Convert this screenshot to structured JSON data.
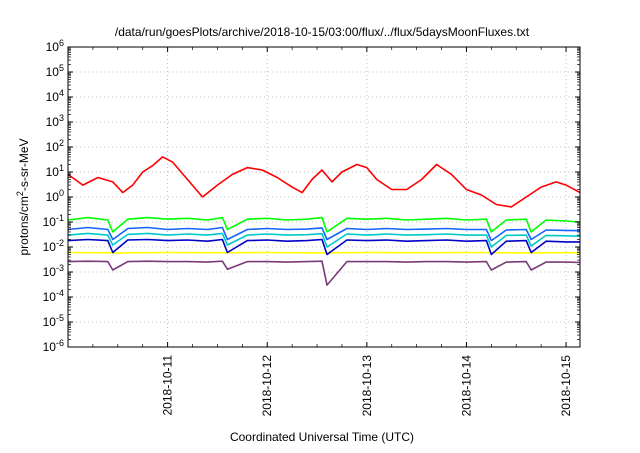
{
  "chart_data": {
    "type": "line",
    "title": "/data/run/goesPlots/archive/2018-10-15/03:00/flux/../flux/5daysMoonFluxes.txt",
    "xlabel": "Coordinated Universal Time (UTC)",
    "ylabel": "protons/cm²-s-sr-MeV",
    "y_scale": "log",
    "ylim": [
      1e-06,
      1000000.0
    ],
    "xlim": [
      0.0,
      5.14
    ],
    "x_unit": "days since 2018-10-10 00:00 UTC",
    "x_ticks": [
      {
        "value": 1,
        "label": "2018-10-11"
      },
      {
        "value": 2,
        "label": "2018-10-12"
      },
      {
        "value": 3,
        "label": "2018-10-13"
      },
      {
        "value": 4,
        "label": "2018-10-14"
      },
      {
        "value": 5,
        "label": "2018-10-15"
      }
    ],
    "y_ticks": [
      {
        "value": 1e-06,
        "base": "10",
        "exp": "-6"
      },
      {
        "value": 1e-05,
        "base": "10",
        "exp": "-5"
      },
      {
        "value": 0.0001,
        "base": "10",
        "exp": "-4"
      },
      {
        "value": 0.001,
        "base": "10",
        "exp": "-3"
      },
      {
        "value": 0.01,
        "base": "10",
        "exp": "-2"
      },
      {
        "value": 0.1,
        "base": "10",
        "exp": "-1"
      },
      {
        "value": 1,
        "base": "10",
        "exp": "0"
      },
      {
        "value": 10,
        "base": "10",
        "exp": "1"
      },
      {
        "value": 100,
        "base": "10",
        "exp": "2"
      },
      {
        "value": 1000,
        "base": "10",
        "exp": "3"
      },
      {
        "value": 10000,
        "base": "10",
        "exp": "4"
      },
      {
        "value": 100000,
        "base": "10",
        "exp": "5"
      },
      {
        "value": 1000000,
        "base": "10",
        "exp": "6"
      }
    ],
    "grid": true,
    "series": [
      {
        "color": "#ff0000",
        "x": [
          0,
          0.15,
          0.3,
          0.45,
          0.55,
          0.65,
          0.75,
          0.85,
          0.95,
          1.05,
          1.2,
          1.35,
          1.5,
          1.65,
          1.8,
          1.95,
          2.1,
          2.25,
          2.35,
          2.45,
          2.55,
          2.65,
          2.75,
          2.9,
          3.0,
          3.1,
          3.25,
          3.4,
          3.55,
          3.7,
          3.85,
          4.0,
          4.15,
          4.3,
          4.45,
          4.6,
          4.75,
          4.9,
          5.0,
          5.14
        ],
        "y": [
          8,
          3,
          6,
          4,
          1.5,
          3,
          10,
          18,
          40,
          25,
          5,
          1,
          3,
          8,
          15,
          12,
          6,
          2.5,
          1.5,
          5,
          12,
          4,
          10,
          20,
          15,
          5,
          2,
          2,
          5,
          20,
          8,
          2,
          1.2,
          0.5,
          0.4,
          1,
          2.5,
          4,
          3,
          1.5
        ]
      },
      {
        "color": "#00ff00",
        "x": [
          0,
          0.2,
          0.4,
          0.45,
          0.6,
          0.8,
          1.0,
          1.2,
          1.4,
          1.55,
          1.6,
          1.8,
          2.0,
          2.2,
          2.4,
          2.55,
          2.6,
          2.8,
          3.0,
          3.2,
          3.4,
          3.6,
          3.8,
          4.0,
          4.2,
          4.25,
          4.4,
          4.6,
          4.65,
          4.8,
          5.0,
          5.14
        ],
        "y": [
          0.12,
          0.15,
          0.12,
          0.04,
          0.13,
          0.15,
          0.13,
          0.14,
          0.12,
          0.15,
          0.05,
          0.13,
          0.14,
          0.12,
          0.13,
          0.15,
          0.04,
          0.14,
          0.13,
          0.14,
          0.12,
          0.13,
          0.14,
          0.12,
          0.13,
          0.04,
          0.12,
          0.13,
          0.04,
          0.12,
          0.11,
          0.1
        ]
      },
      {
        "color": "#00c8c8",
        "x": [
          0,
          0.2,
          0.4,
          0.45,
          0.6,
          0.8,
          1.0,
          1.2,
          1.4,
          1.55,
          1.6,
          1.8,
          2.0,
          2.2,
          2.4,
          2.55,
          2.6,
          2.8,
          3.0,
          3.2,
          3.4,
          3.6,
          3.8,
          4.0,
          4.2,
          4.25,
          4.4,
          4.6,
          4.65,
          4.8,
          5.0,
          5.14
        ],
        "y": [
          0.03,
          0.035,
          0.03,
          0.012,
          0.032,
          0.035,
          0.03,
          0.033,
          0.03,
          0.035,
          0.012,
          0.03,
          0.033,
          0.03,
          0.031,
          0.034,
          0.01,
          0.033,
          0.03,
          0.033,
          0.03,
          0.031,
          0.033,
          0.03,
          0.03,
          0.01,
          0.029,
          0.03,
          0.011,
          0.029,
          0.028,
          0.027
        ]
      },
      {
        "color": "#1464ff",
        "x": [
          0,
          0.2,
          0.4,
          0.45,
          0.6,
          0.8,
          1.0,
          1.2,
          1.4,
          1.55,
          1.6,
          1.8,
          2.0,
          2.2,
          2.4,
          2.55,
          2.6,
          2.8,
          3.0,
          3.2,
          3.4,
          3.6,
          3.8,
          4.0,
          4.2,
          4.25,
          4.4,
          4.6,
          4.65,
          4.8,
          5.0,
          5.14
        ],
        "y": [
          0.05,
          0.06,
          0.05,
          0.02,
          0.055,
          0.06,
          0.05,
          0.055,
          0.05,
          0.06,
          0.02,
          0.05,
          0.055,
          0.05,
          0.052,
          0.058,
          0.02,
          0.055,
          0.05,
          0.055,
          0.05,
          0.052,
          0.055,
          0.05,
          0.05,
          0.018,
          0.048,
          0.05,
          0.02,
          0.048,
          0.046,
          0.045
        ]
      },
      {
        "color": "#0000c8",
        "x": [
          0,
          0.2,
          0.4,
          0.45,
          0.6,
          0.8,
          1.0,
          1.2,
          1.4,
          1.55,
          1.6,
          1.8,
          2.0,
          2.2,
          2.4,
          2.55,
          2.6,
          2.8,
          3.0,
          3.2,
          3.4,
          3.6,
          3.8,
          4.0,
          4.2,
          4.25,
          4.4,
          4.6,
          4.65,
          4.8,
          5.0,
          5.14
        ],
        "y": [
          0.018,
          0.02,
          0.018,
          0.006,
          0.019,
          0.02,
          0.018,
          0.019,
          0.017,
          0.02,
          0.006,
          0.018,
          0.019,
          0.017,
          0.018,
          0.02,
          0.005,
          0.019,
          0.018,
          0.019,
          0.017,
          0.018,
          0.019,
          0.017,
          0.018,
          0.005,
          0.017,
          0.018,
          0.006,
          0.017,
          0.016,
          0.016
        ]
      },
      {
        "color": "#ffff00",
        "x": [
          0,
          0.5,
          1.0,
          1.5,
          2.0,
          2.5,
          3.0,
          3.5,
          4.0,
          4.5,
          5.0,
          5.14
        ],
        "y": [
          0.006,
          0.0058,
          0.006,
          0.0059,
          0.006,
          0.0058,
          0.006,
          0.0059,
          0.006,
          0.0058,
          0.0059,
          0.0058
        ]
      },
      {
        "color": "#7a3a78",
        "x": [
          0,
          0.2,
          0.4,
          0.45,
          0.6,
          0.8,
          1.0,
          1.2,
          1.4,
          1.55,
          1.6,
          1.8,
          2.0,
          2.2,
          2.4,
          2.55,
          2.6,
          2.8,
          3.0,
          3.2,
          3.4,
          3.6,
          3.8,
          4.0,
          4.2,
          4.25,
          4.4,
          4.6,
          4.65,
          4.8,
          5.0,
          5.14
        ],
        "y": [
          0.0026,
          0.0027,
          0.0026,
          0.0012,
          0.0026,
          0.0027,
          0.0026,
          0.0026,
          0.0025,
          0.0027,
          0.0013,
          0.0026,
          0.0026,
          0.0025,
          0.0026,
          0.0027,
          0.0003,
          0.0026,
          0.0026,
          0.0026,
          0.0025,
          0.0026,
          0.0026,
          0.0025,
          0.0026,
          0.0012,
          0.0025,
          0.0026,
          0.0012,
          0.0025,
          0.0025,
          0.0024
        ]
      }
    ]
  }
}
